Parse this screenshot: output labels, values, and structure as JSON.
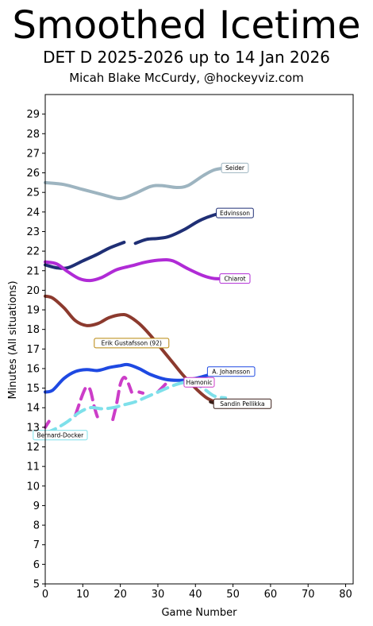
{
  "header": {
    "title": "Smoothed Icetime",
    "subtitle": "DET D 2025-2026 up to 14 Jan 2026",
    "credit": "Micah Blake McCurdy, @hockeyviz.com"
  },
  "chart_data": {
    "type": "line",
    "xlabel": "Game Number",
    "ylabel": "Minutes (All situations)",
    "xlim": [
      0,
      82
    ],
    "ylim": [
      5,
      30
    ],
    "xticks": [
      0,
      10,
      20,
      30,
      40,
      50,
      60,
      70,
      80
    ],
    "yticks": [
      5,
      6,
      7,
      8,
      9,
      10,
      11,
      12,
      13,
      14,
      15,
      16,
      17,
      18,
      19,
      20,
      21,
      22,
      23,
      24,
      25,
      26,
      27,
      28,
      29
    ],
    "grid": false,
    "series": [
      {
        "name": "Seider",
        "color": "#9db4c0",
        "dashed": false,
        "points": [
          [
            0,
            25.5
          ],
          [
            5,
            25.4
          ],
          [
            10,
            25.15
          ],
          [
            15,
            24.9
          ],
          [
            19,
            24.7
          ],
          [
            21,
            24.72
          ],
          [
            24,
            24.95
          ],
          [
            28,
            25.3
          ],
          [
            31,
            25.35
          ],
          [
            35,
            25.25
          ],
          [
            38,
            25.35
          ],
          [
            42,
            25.85
          ],
          [
            45,
            26.15
          ],
          [
            48,
            26.25
          ]
        ]
      },
      {
        "name": "Edvinsson",
        "color": "#1f2f75",
        "dashed": false,
        "points": [
          [
            0,
            21.3
          ],
          [
            3,
            21.15
          ],
          [
            6,
            21.15
          ],
          [
            10,
            21.5
          ],
          [
            14,
            21.85
          ],
          [
            17,
            22.15
          ],
          [
            21,
            22.45
          ],
          [
            23,
            null
          ],
          [
            24,
            22.4
          ],
          [
            27,
            22.6
          ],
          [
            30,
            22.65
          ],
          [
            33,
            22.75
          ],
          [
            37,
            23.1
          ],
          [
            41,
            23.55
          ],
          [
            45,
            23.85
          ],
          [
            48,
            23.95
          ]
        ]
      },
      {
        "name": "Chiarot",
        "color": "#b02bd6",
        "dashed": false,
        "points": [
          [
            0,
            21.45
          ],
          [
            3,
            21.35
          ],
          [
            6,
            20.95
          ],
          [
            9,
            20.6
          ],
          [
            12,
            20.5
          ],
          [
            15,
            20.65
          ],
          [
            19,
            21.05
          ],
          [
            23,
            21.25
          ],
          [
            27,
            21.45
          ],
          [
            31,
            21.55
          ],
          [
            34,
            21.5
          ],
          [
            38,
            21.1
          ],
          [
            42,
            20.75
          ],
          [
            45,
            20.6
          ],
          [
            48,
            20.6
          ]
        ]
      },
      {
        "name": "Erik Gustafsson (92)",
        "color": "#8c3a2e",
        "dashed": false,
        "points": [
          [
            0,
            19.7
          ],
          [
            2,
            19.6
          ],
          [
            5,
            19.1
          ],
          [
            8,
            18.45
          ],
          [
            11,
            18.2
          ],
          [
            14,
            18.3
          ],
          [
            17,
            18.6
          ],
          [
            20,
            18.75
          ],
          [
            22,
            18.7
          ],
          [
            25,
            18.3
          ],
          [
            28,
            17.7
          ],
          [
            31,
            17.0
          ],
          [
            34,
            16.3
          ],
          [
            37,
            15.6
          ],
          [
            40,
            15.0
          ],
          [
            43,
            14.5
          ],
          [
            46,
            14.25
          ],
          [
            48,
            14.2
          ]
        ]
      },
      {
        "name": "A. Johansson",
        "color": "#1e49e2",
        "dashed": false,
        "points": [
          [
            0,
            14.8
          ],
          [
            2,
            14.9
          ],
          [
            5,
            15.5
          ],
          [
            8,
            15.85
          ],
          [
            11,
            15.95
          ],
          [
            14,
            15.9
          ],
          [
            17,
            16.05
          ],
          [
            20,
            16.15
          ],
          [
            22,
            16.2
          ],
          [
            25,
            16.0
          ],
          [
            28,
            15.7
          ],
          [
            32,
            15.45
          ],
          [
            36,
            15.4
          ],
          [
            40,
            15.5
          ],
          [
            44,
            15.7
          ],
          [
            47,
            15.85
          ]
        ]
      },
      {
        "name": "Hamonic",
        "color": "#cc3dc8",
        "dashed": true,
        "points": [
          [
            0,
            13.0
          ],
          [
            1,
            13.3
          ],
          [
            2,
            null
          ],
          [
            8,
            13.6
          ],
          [
            10,
            14.7
          ],
          [
            11,
            15.05
          ],
          [
            12,
            14.9
          ],
          [
            13,
            14.1
          ],
          [
            14,
            13.5
          ],
          [
            15,
            13.4
          ],
          [
            16,
            null
          ],
          [
            18,
            13.4
          ],
          [
            19,
            14.2
          ],
          [
            20,
            15.2
          ],
          [
            21,
            15.55
          ],
          [
            22,
            15.3
          ],
          [
            23,
            14.8
          ],
          [
            24,
            null
          ],
          [
            25,
            14.8
          ],
          [
            26,
            14.75
          ],
          [
            27,
            null
          ],
          [
            30,
            14.8
          ],
          [
            31,
            15.0
          ],
          [
            32,
            15.2
          ]
        ]
      },
      {
        "name": "Sandin Pellikka",
        "color": "#3a1f18",
        "dashed": false,
        "points": [
          [
            44,
            14.3
          ],
          [
            46,
            14.2
          ],
          [
            48,
            14.2
          ]
        ]
      },
      {
        "name": "Bernard-Docker",
        "color": "#7ee0ea",
        "dashed": true,
        "points": [
          [
            0,
            12.7
          ],
          [
            3,
            12.95
          ],
          [
            6,
            13.3
          ],
          [
            9,
            13.75
          ],
          [
            12,
            14.0
          ],
          [
            15,
            13.95
          ],
          [
            18,
            14.0
          ],
          [
            21,
            14.15
          ],
          [
            24,
            14.3
          ],
          [
            27,
            14.55
          ],
          [
            30,
            14.8
          ],
          [
            33,
            15.05
          ],
          [
            36,
            15.25
          ],
          [
            39,
            15.3
          ],
          [
            42,
            15.0
          ],
          [
            45,
            14.6
          ],
          [
            48,
            14.5
          ]
        ]
      }
    ],
    "labels": [
      {
        "text": "Seider",
        "x": 50.5,
        "y": 26.25,
        "border": "#9db4c0"
      },
      {
        "text": "Edvinsson",
        "x": 50.5,
        "y": 23.95,
        "border": "#1f2f75"
      },
      {
        "text": "Chiarot",
        "x": 50.5,
        "y": 20.6,
        "border": "#b02bd6"
      },
      {
        "text": "Erik Gustafsson (92)",
        "x": 23,
        "y": 17.3,
        "border": "#b8860b"
      },
      {
        "text": "A. Johansson",
        "x": 49.5,
        "y": 15.85,
        "border": "#1e49e2"
      },
      {
        "text": "Hamonic",
        "x": 41,
        "y": 15.3,
        "border": "#cc3dc8"
      },
      {
        "text": "Sandin Pellikka",
        "x": 52.5,
        "y": 14.2,
        "border": "#3a1f18"
      },
      {
        "text": "Bernard-Docker",
        "x": 4,
        "y": 12.6,
        "border": "#7ee0ea"
      }
    ]
  }
}
